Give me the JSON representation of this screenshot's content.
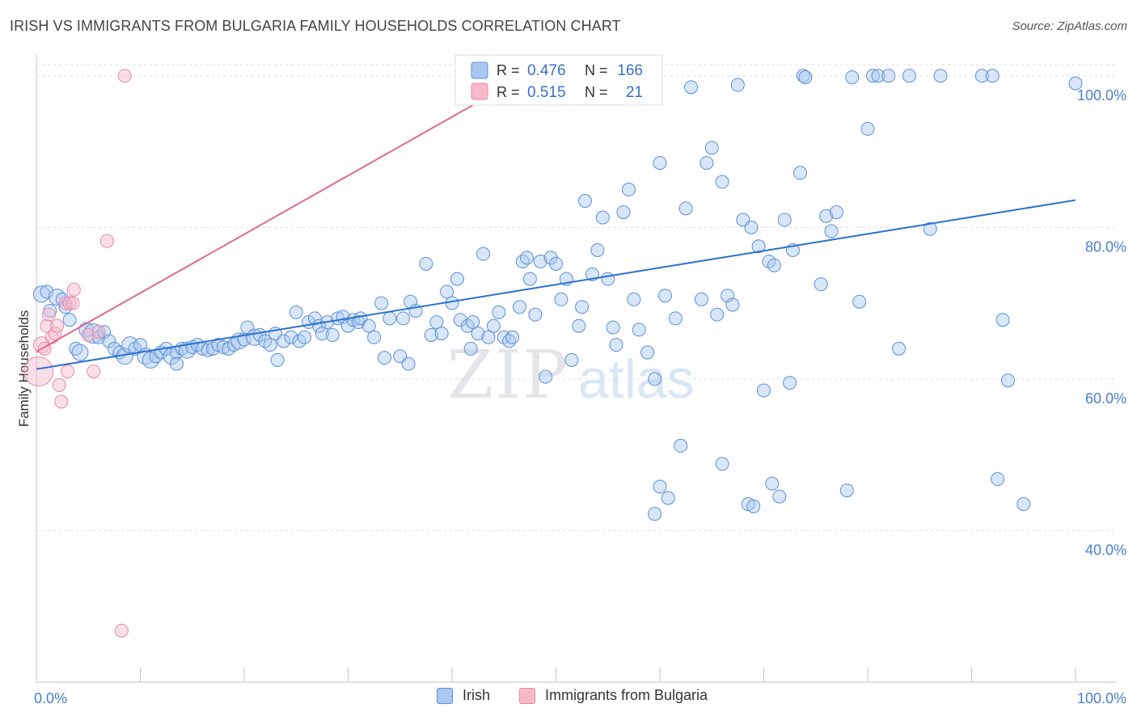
{
  "header": {
    "title": "IRISH VS IMMIGRANTS FROM BULGARIA FAMILY HOUSEHOLDS CORRELATION CHART",
    "source": "Source: ZipAtlas.com"
  },
  "watermark": {
    "zip": "ZIP",
    "atlas": "atlas"
  },
  "colors": {
    "irish_fill": "#a9c8f0",
    "irish_stroke": "#5b8fd8",
    "irish_line": "#2a6fd0",
    "bulgaria_fill": "#f6b9cb",
    "bulgaria_stroke": "#e58aa8",
    "bulgaria_line": "#e06a93",
    "grid": "#d9dde3",
    "tick_label": "#4a7fd0"
  },
  "legend": {
    "r_label": "R =",
    "n_label": "N =",
    "rows": [
      {
        "r": "0.476",
        "n": "166"
      },
      {
        "r": "0.515",
        "n": "21"
      }
    ]
  },
  "chart_data": {
    "type": "scatter",
    "title": "IRISH VS IMMIGRANTS FROM BULGARIA FAMILY HOUSEHOLDS CORRELATION CHART",
    "xlabel": "",
    "ylabel": "Family Households",
    "xlim": [
      0,
      100
    ],
    "ylim": [
      20,
      102
    ],
    "x_tick_labels": {
      "0": "0.0%",
      "100": "100.0%"
    },
    "y_ticks": [
      40,
      60,
      80,
      100
    ],
    "y_tick_labels": [
      "40.0%",
      "60.0%",
      "80.0%",
      "100.0%"
    ],
    "grid": true,
    "legend_position": "top-center",
    "series": [
      {
        "name": "Irish",
        "r": 0.476,
        "n": 166,
        "trend": {
          "x": [
            0,
            100
          ],
          "y": [
            61.3,
            83.6
          ]
        },
        "points": [
          [
            0.5,
            71.2,
            10
          ],
          [
            1,
            71.5,
            8
          ],
          [
            1.3,
            69,
            8
          ],
          [
            2,
            70.8,
            10
          ],
          [
            2.5,
            70.5,
            8
          ],
          [
            2.8,
            69.5,
            8
          ],
          [
            3.2,
            67.8,
            8
          ],
          [
            3.8,
            64,
            8
          ],
          [
            4.2,
            63.5,
            10
          ],
          [
            4.8,
            66.5,
            9
          ],
          [
            5.5,
            66,
            12
          ],
          [
            6,
            65.5,
            8
          ],
          [
            6.5,
            66.2,
            8
          ],
          [
            7,
            65,
            8
          ],
          [
            7.5,
            64,
            8
          ],
          [
            8,
            63.5,
            8
          ],
          [
            8.5,
            63,
            10
          ],
          [
            9,
            64.5,
            10
          ],
          [
            9.5,
            64,
            8
          ],
          [
            10,
            64.5,
            8
          ],
          [
            10.5,
            63,
            10
          ],
          [
            11,
            62.5,
            10
          ],
          [
            11.5,
            63,
            8
          ],
          [
            12,
            63.5,
            8
          ],
          [
            12.5,
            64,
            8
          ],
          [
            13,
            63,
            10
          ],
          [
            13.5,
            63.5,
            8
          ],
          [
            13.5,
            62,
            8
          ],
          [
            14,
            64,
            8
          ],
          [
            14.5,
            63.8,
            10
          ],
          [
            15,
            64.2,
            8
          ],
          [
            15.5,
            64.5,
            8
          ],
          [
            16,
            64,
            8
          ],
          [
            16.5,
            63.8,
            8
          ],
          [
            17,
            64,
            8
          ],
          [
            17.5,
            64.5,
            8
          ],
          [
            18,
            64.2,
            8
          ],
          [
            18.5,
            64,
            8
          ],
          [
            19,
            64.5,
            8
          ],
          [
            19.5,
            65,
            10
          ],
          [
            20,
            65.2,
            8
          ],
          [
            20.3,
            66.8,
            8
          ],
          [
            21,
            65.5,
            10
          ],
          [
            21.5,
            65.8,
            8
          ],
          [
            22,
            65,
            8
          ],
          [
            22.5,
            64.5,
            8
          ],
          [
            23,
            66,
            8
          ],
          [
            23.2,
            62.5,
            8
          ],
          [
            23.8,
            65,
            8
          ],
          [
            24.5,
            65.5,
            8
          ],
          [
            25,
            68.8,
            8
          ],
          [
            25.3,
            65,
            8
          ],
          [
            25.8,
            65.5,
            8
          ],
          [
            26.2,
            67.5,
            8
          ],
          [
            26.8,
            68,
            8
          ],
          [
            27.2,
            67,
            8
          ],
          [
            27.5,
            66,
            8
          ],
          [
            28,
            67.5,
            8
          ],
          [
            28.5,
            65.8,
            8
          ],
          [
            29,
            68,
            8
          ],
          [
            29.5,
            68.2,
            8
          ],
          [
            30,
            67,
            8
          ],
          [
            30.5,
            67.8,
            8
          ],
          [
            31,
            67.5,
            8
          ],
          [
            31.2,
            68,
            8
          ],
          [
            32,
            67,
            8
          ],
          [
            32.5,
            65.5,
            8
          ],
          [
            33.2,
            70,
            8
          ],
          [
            33.5,
            62.8,
            8
          ],
          [
            34,
            68,
            8
          ],
          [
            35,
            63,
            8
          ],
          [
            35.3,
            68,
            8
          ],
          [
            35.8,
            62,
            8
          ],
          [
            36,
            70.2,
            8
          ],
          [
            36.5,
            69,
            8
          ],
          [
            37.5,
            75.2,
            8
          ],
          [
            38,
            65.8,
            8
          ],
          [
            38.5,
            67.5,
            8
          ],
          [
            39,
            66,
            8
          ],
          [
            39.5,
            71.5,
            8
          ],
          [
            40,
            70,
            8
          ],
          [
            40.5,
            73.2,
            8
          ],
          [
            40.8,
            67.8,
            8
          ],
          [
            41.5,
            67,
            8
          ],
          [
            41.8,
            64,
            8
          ],
          [
            42,
            67.5,
            8
          ],
          [
            42.5,
            66,
            8
          ],
          [
            43,
            76.5,
            8
          ],
          [
            43.5,
            65.5,
            8
          ],
          [
            44,
            67,
            8
          ],
          [
            44.5,
            68.8,
            8
          ],
          [
            45,
            65.5,
            8
          ],
          [
            45.5,
            65,
            8
          ],
          [
            45.8,
            65.5,
            8
          ],
          [
            46.5,
            69.5,
            8
          ],
          [
            46.8,
            75.5,
            8
          ],
          [
            47.2,
            76,
            8
          ],
          [
            47.5,
            73.2,
            8
          ],
          [
            48,
            68.5,
            8
          ],
          [
            48.5,
            75.5,
            8
          ],
          [
            49.5,
            76,
            8
          ],
          [
            50,
            75.2,
            8
          ],
          [
            50.5,
            70.5,
            8
          ],
          [
            49,
            60.3,
            8
          ],
          [
            51,
            73.2,
            8
          ],
          [
            51.5,
            62.5,
            8
          ],
          [
            52.2,
            67,
            8
          ],
          [
            52.5,
            69.5,
            8
          ],
          [
            52.8,
            83.5,
            8
          ],
          [
            53.5,
            73.8,
            8
          ],
          [
            54,
            77,
            8
          ],
          [
            54.5,
            81.3,
            8
          ],
          [
            55,
            73.2,
            8
          ],
          [
            55.5,
            66.8,
            8
          ],
          [
            55.8,
            64.5,
            8
          ],
          [
            56.5,
            82,
            8
          ],
          [
            57,
            85,
            8
          ],
          [
            57.5,
            70.5,
            8
          ],
          [
            58,
            66.5,
            8
          ],
          [
            58.8,
            63.5,
            8
          ],
          [
            59.5,
            60,
            8
          ],
          [
            60,
            88.5,
            8
          ],
          [
            60.5,
            71,
            8
          ],
          [
            61.5,
            68,
            8
          ],
          [
            62,
            51.2,
            8
          ],
          [
            62.5,
            82.5,
            8
          ],
          [
            63,
            98.5,
            8
          ],
          [
            64,
            70.5,
            8
          ],
          [
            64.5,
            88.5,
            8
          ],
          [
            65,
            90.5,
            8
          ],
          [
            65.5,
            68.5,
            8
          ],
          [
            66,
            86,
            8
          ],
          [
            66.5,
            71,
            8
          ],
          [
            67,
            69.8,
            8
          ],
          [
            67.5,
            98.8,
            8
          ],
          [
            68,
            81,
            8
          ],
          [
            68.5,
            43.5,
            8
          ],
          [
            68.8,
            80,
            8
          ],
          [
            69,
            43.2,
            8
          ],
          [
            69.5,
            77.5,
            8
          ],
          [
            70,
            58.5,
            8
          ],
          [
            70.5,
            75.5,
            8
          ],
          [
            71,
            75,
            8
          ],
          [
            72,
            81,
            8
          ],
          [
            72.5,
            59.5,
            8
          ],
          [
            72.8,
            77,
            8
          ],
          [
            73.5,
            87.2,
            8
          ],
          [
            73.8,
            100,
            8
          ],
          [
            74,
            99.8,
            8
          ],
          [
            75.5,
            72.5,
            8
          ],
          [
            76,
            81.5,
            8
          ],
          [
            76.5,
            79.5,
            8
          ],
          [
            77,
            82,
            8
          ],
          [
            78,
            45.3,
            8
          ],
          [
            78.5,
            99.8,
            8
          ],
          [
            79.2,
            70.2,
            8
          ],
          [
            80,
            93,
            8
          ],
          [
            80.5,
            100,
            8
          ],
          [
            81,
            100,
            8
          ],
          [
            82,
            100,
            8
          ],
          [
            83,
            64,
            8
          ],
          [
            84,
            100,
            8
          ],
          [
            87,
            100,
            8
          ],
          [
            91,
            100,
            8
          ],
          [
            92,
            100,
            8
          ],
          [
            93,
            67.8,
            8
          ],
          [
            100,
            99,
            8
          ],
          [
            60,
            45.8,
            8
          ],
          [
            59.5,
            42.2,
            8
          ],
          [
            60.8,
            44.3,
            8
          ],
          [
            66,
            48.8,
            8
          ],
          [
            70.8,
            46.2,
            8
          ],
          [
            71.5,
            44.5,
            8
          ],
          [
            86,
            79.8,
            8
          ],
          [
            95,
            43.5,
            8
          ],
          [
            93.5,
            59.8,
            8
          ],
          [
            92.5,
            46.8,
            8
          ]
        ]
      },
      {
        "name": "Immigrants from Bulgaria",
        "r": 0.515,
        "n": 21,
        "trend": {
          "x": [
            0,
            47
          ],
          "y": [
            63.6,
            100
          ]
        },
        "points": [
          [
            0.2,
            61,
            18
          ],
          [
            0.5,
            64.5,
            10
          ],
          [
            0.8,
            64,
            8
          ],
          [
            1,
            67,
            8
          ],
          [
            1.2,
            68.5,
            8
          ],
          [
            1.5,
            65.5,
            8
          ],
          [
            1.8,
            66,
            8
          ],
          [
            2,
            67,
            8
          ],
          [
            2.2,
            59.2,
            8
          ],
          [
            2.4,
            57,
            8
          ],
          [
            2.8,
            70,
            8
          ],
          [
            3,
            61,
            8
          ],
          [
            3.2,
            70,
            8
          ],
          [
            3.5,
            70,
            8
          ],
          [
            3.6,
            71.8,
            8
          ],
          [
            5,
            65.8,
            8
          ],
          [
            5.5,
            61,
            8
          ],
          [
            6,
            66.2,
            8
          ],
          [
            6.8,
            78.2,
            8
          ],
          [
            8.5,
            100,
            8
          ],
          [
            8.2,
            26.8,
            8
          ]
        ]
      }
    ]
  }
}
